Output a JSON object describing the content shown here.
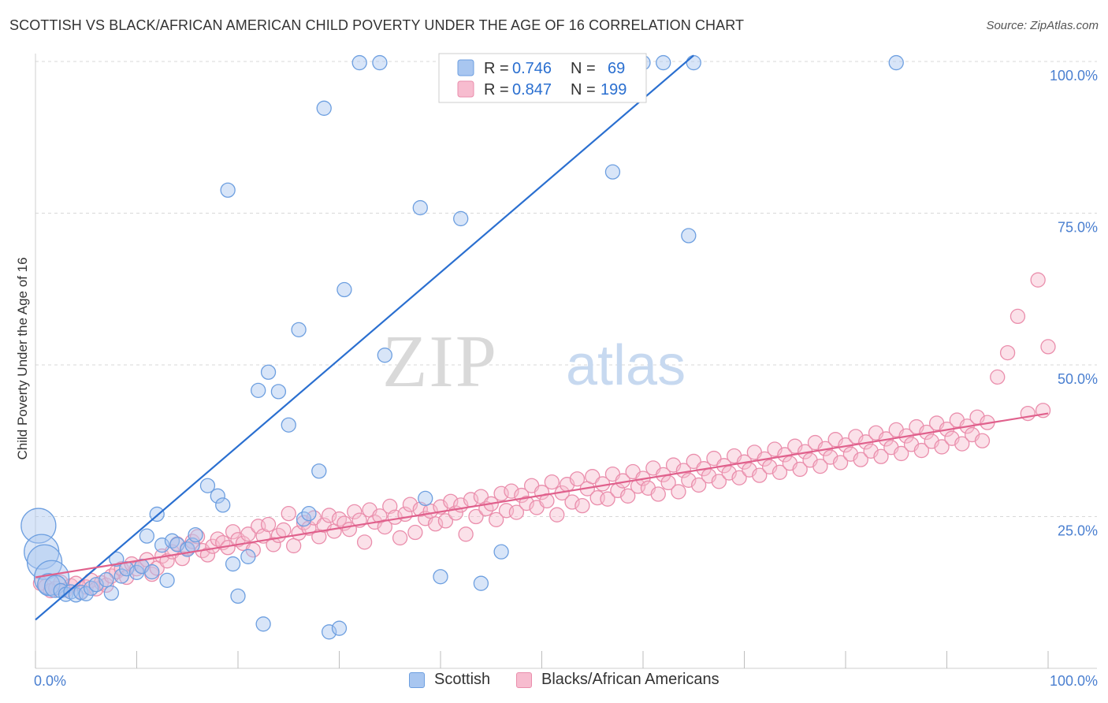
{
  "title": "SCOTTISH VS BLACK/AFRICAN AMERICAN CHILD POVERTY UNDER THE AGE OF 16 CORRELATION CHART",
  "source": "Source: ZipAtlas.com",
  "watermark": {
    "part1": "ZIP",
    "part2": "atlas"
  },
  "colors": {
    "scottish_fill": "#a8c6f0",
    "scottish_stroke": "#6d9fe0",
    "scottish_line": "#2a6fd0",
    "black_fill": "#f7bccf",
    "black_stroke": "#ea8eac",
    "black_line": "#e0608c",
    "tick_text": "#4a7fd0",
    "grid": "#d8d8d8"
  },
  "legend": {
    "rows": [
      {
        "r_label": "R =",
        "r_value": "0.746",
        "n_label": "N =",
        "n_value": "69"
      },
      {
        "r_label": "R =",
        "r_value": "0.847",
        "n_label": "N =",
        "n_value": "199"
      }
    ]
  },
  "bottom_legend": {
    "scottish": "Scottish",
    "black": "Blacks/African Americans"
  },
  "chart_data": {
    "type": "scatter",
    "title": "SCOTTISH VS BLACK/AFRICAN AMERICAN CHILD POVERTY UNDER THE AGE OF 16 CORRELATION CHART",
    "xlabel": "",
    "ylabel": "Child Poverty Under the Age of 16",
    "xlim": [
      0,
      100
    ],
    "ylim": [
      0,
      100
    ],
    "x_tick_labels": [
      "0.0%",
      "100.0%"
    ],
    "y_tick_labels": [
      "25.0%",
      "50.0%",
      "75.0%",
      "100.0%"
    ],
    "y_ticks": [
      25,
      50,
      75,
      100
    ],
    "grid": true,
    "legend_position": "top-center",
    "series": [
      {
        "name": "Scottish",
        "r": 0.746,
        "n": 69,
        "trend": {
          "x": [
            0,
            65
          ],
          "y": [
            8,
            101
          ]
        },
        "points": [
          [
            0.3,
            23.5,
            "L"
          ],
          [
            0.6,
            19.2,
            "L"
          ],
          [
            0.9,
            17.5,
            "L"
          ],
          [
            1.6,
            14.9,
            "L"
          ],
          [
            1.3,
            13.8,
            "M"
          ],
          [
            2.0,
            13.5,
            "M"
          ],
          [
            2.5,
            12.8
          ],
          [
            3.0,
            12.2
          ],
          [
            3.5,
            12.6
          ],
          [
            4.0,
            12.1
          ],
          [
            4.5,
            12.5
          ],
          [
            5.0,
            12.3
          ],
          [
            5.5,
            13.2
          ],
          [
            6.0,
            13.8
          ],
          [
            7.0,
            14.6
          ],
          [
            7.5,
            12.4
          ],
          [
            8.0,
            18.0
          ],
          [
            8.5,
            15.2
          ],
          [
            9.0,
            16.4
          ],
          [
            10.0,
            15.8
          ],
          [
            10.5,
            16.8
          ],
          [
            11.0,
            21.8
          ],
          [
            11.5,
            15.9
          ],
          [
            12.0,
            25.4
          ],
          [
            12.5,
            20.3
          ],
          [
            13.0,
            14.5
          ],
          [
            13.5,
            21.0
          ],
          [
            14.0,
            20.4
          ],
          [
            15.0,
            19.6
          ],
          [
            15.5,
            20.3
          ],
          [
            15.8,
            22.0
          ],
          [
            17.0,
            30.1
          ],
          [
            18.0,
            28.4
          ],
          [
            18.5,
            26.9
          ],
          [
            19.0,
            78.8
          ],
          [
            19.5,
            17.2
          ],
          [
            20.0,
            11.9
          ],
          [
            21.0,
            18.4
          ],
          [
            22.0,
            45.8
          ],
          [
            22.5,
            7.3
          ],
          [
            23.0,
            48.8
          ],
          [
            24.0,
            45.6
          ],
          [
            25.0,
            40.1
          ],
          [
            26.0,
            55.8
          ],
          [
            26.5,
            24.6
          ],
          [
            27.0,
            25.5
          ],
          [
            28.0,
            32.5
          ],
          [
            28.5,
            92.3
          ],
          [
            29.0,
            6.0
          ],
          [
            30.0,
            6.6
          ],
          [
            30.5,
            62.4
          ],
          [
            32.0,
            99.8
          ],
          [
            34.0,
            99.8
          ],
          [
            34.5,
            51.6
          ],
          [
            38.0,
            75.9
          ],
          [
            38.5,
            28.0
          ],
          [
            40.0,
            15.1
          ],
          [
            42.0,
            74.1
          ],
          [
            44.0,
            14.0
          ],
          [
            46.0,
            19.2
          ],
          [
            48.0,
            99.8
          ],
          [
            48.3,
            99.8
          ],
          [
            57.0,
            81.8
          ],
          [
            57.5,
            99.8
          ],
          [
            60.0,
            99.8
          ],
          [
            62.0,
            99.8
          ],
          [
            64.5,
            71.3
          ],
          [
            65.0,
            99.8
          ],
          [
            85.0,
            99.8
          ]
        ]
      },
      {
        "name": "Blacks/African Americans",
        "r": 0.847,
        "n": 199,
        "trend": {
          "x": [
            0,
            100
          ],
          "y": [
            15.0,
            42.0
          ]
        },
        "points": [
          [
            0.5,
            14.0
          ],
          [
            1.0,
            13.5
          ],
          [
            1.5,
            12.8
          ],
          [
            2.0,
            13.2
          ],
          [
            2.5,
            14.2
          ],
          [
            3.0,
            12.9
          ],
          [
            3.5,
            13.6
          ],
          [
            4.0,
            14.0
          ],
          [
            4.5,
            12.6
          ],
          [
            5.0,
            13.4
          ],
          [
            5.5,
            14.5
          ],
          [
            6.0,
            13.1
          ],
          [
            6.5,
            14.1
          ],
          [
            7.0,
            13.7
          ],
          [
            7.5,
            15.2
          ],
          [
            8.0,
            15.9
          ],
          [
            8.5,
            16.4
          ],
          [
            9.0,
            15.0
          ],
          [
            9.5,
            17.2
          ],
          [
            10.0,
            16.4
          ],
          [
            10.5,
            16.8
          ],
          [
            11.0,
            17.9
          ],
          [
            11.5,
            15.5
          ],
          [
            12.0,
            16.5
          ],
          [
            12.5,
            18.5
          ],
          [
            13.0,
            17.7
          ],
          [
            13.5,
            19.2
          ],
          [
            14.0,
            20.5
          ],
          [
            14.5,
            18.1
          ],
          [
            15.0,
            19.8
          ],
          [
            15.5,
            20.9
          ],
          [
            16.0,
            21.7
          ],
          [
            16.5,
            19.4
          ],
          [
            17.0,
            18.7
          ],
          [
            17.5,
            20.1
          ],
          [
            18.0,
            21.3
          ],
          [
            18.5,
            20.7
          ],
          [
            19.0,
            19.9
          ],
          [
            19.5,
            22.5
          ],
          [
            20.0,
            21.2
          ],
          [
            20.5,
            20.6
          ],
          [
            21.0,
            22.1
          ],
          [
            21.5,
            19.5
          ],
          [
            22.0,
            23.4
          ],
          [
            22.5,
            21.8
          ],
          [
            23.0,
            23.7
          ],
          [
            23.5,
            20.4
          ],
          [
            24.0,
            21.9
          ],
          [
            24.5,
            22.8
          ],
          [
            25.0,
            25.5
          ],
          [
            25.5,
            20.2
          ],
          [
            26.0,
            22.3
          ],
          [
            26.5,
            24.0
          ],
          [
            27.0,
            23.1
          ],
          [
            27.5,
            24.8
          ],
          [
            28.0,
            21.7
          ],
          [
            28.5,
            23.6
          ],
          [
            29.0,
            25.2
          ],
          [
            29.5,
            22.6
          ],
          [
            30.0,
            24.6
          ],
          [
            30.5,
            23.9
          ],
          [
            31.0,
            22.9
          ],
          [
            31.5,
            25.8
          ],
          [
            32.0,
            24.4
          ],
          [
            32.5,
            20.8
          ],
          [
            33.0,
            26.1
          ],
          [
            33.5,
            24.1
          ],
          [
            34.0,
            25.1
          ],
          [
            34.5,
            23.3
          ],
          [
            35.0,
            26.7
          ],
          [
            35.5,
            24.9
          ],
          [
            36.0,
            21.5
          ],
          [
            36.5,
            25.4
          ],
          [
            37.0,
            27.0
          ],
          [
            37.5,
            22.4
          ],
          [
            38.0,
            26.2
          ],
          [
            38.5,
            24.7
          ],
          [
            39.0,
            25.9
          ],
          [
            39.5,
            23.8
          ],
          [
            40.0,
            26.6
          ],
          [
            40.5,
            24.3
          ],
          [
            41.0,
            27.5
          ],
          [
            41.5,
            25.6
          ],
          [
            42.0,
            26.9
          ],
          [
            42.5,
            22.1
          ],
          [
            43.0,
            27.8
          ],
          [
            43.5,
            25.0
          ],
          [
            44.0,
            28.3
          ],
          [
            44.5,
            26.3
          ],
          [
            45.0,
            27.1
          ],
          [
            45.5,
            24.5
          ],
          [
            46.0,
            28.8
          ],
          [
            46.5,
            26.0
          ],
          [
            47.0,
            29.2
          ],
          [
            47.5,
            25.7
          ],
          [
            48.0,
            28.5
          ],
          [
            48.5,
            27.2
          ],
          [
            49.0,
            30.1
          ],
          [
            49.5,
            26.5
          ],
          [
            50.0,
            29.0
          ],
          [
            50.5,
            27.6
          ],
          [
            51.0,
            30.7
          ],
          [
            51.5,
            25.3
          ],
          [
            52.0,
            28.9
          ],
          [
            52.5,
            30.3
          ],
          [
            53.0,
            27.4
          ],
          [
            53.5,
            31.2
          ],
          [
            54.0,
            26.8
          ],
          [
            54.5,
            29.6
          ],
          [
            55.0,
            31.6
          ],
          [
            55.5,
            28.1
          ],
          [
            56.0,
            30.4
          ],
          [
            56.5,
            27.9
          ],
          [
            57.0,
            32.0
          ],
          [
            57.5,
            29.3
          ],
          [
            58.0,
            30.9
          ],
          [
            58.5,
            28.4
          ],
          [
            59.0,
            32.4
          ],
          [
            59.5,
            30.0
          ],
          [
            60.0,
            31.3
          ],
          [
            60.5,
            29.7
          ],
          [
            61.0,
            33.0
          ],
          [
            61.5,
            28.7
          ],
          [
            62.0,
            31.9
          ],
          [
            62.5,
            30.6
          ],
          [
            63.0,
            33.5
          ],
          [
            63.5,
            29.1
          ],
          [
            64.0,
            32.6
          ],
          [
            64.5,
            31.0
          ],
          [
            65.0,
            34.1
          ],
          [
            65.5,
            30.2
          ],
          [
            66.0,
            32.9
          ],
          [
            66.5,
            31.7
          ],
          [
            67.0,
            34.6
          ],
          [
            67.5,
            30.8
          ],
          [
            68.0,
            33.4
          ],
          [
            68.5,
            32.2
          ],
          [
            69.0,
            35.0
          ],
          [
            69.5,
            31.4
          ],
          [
            70.0,
            34.0
          ],
          [
            70.5,
            32.7
          ],
          [
            71.0,
            35.6
          ],
          [
            71.5,
            31.8
          ],
          [
            72.0,
            34.5
          ],
          [
            72.5,
            33.2
          ],
          [
            73.0,
            36.1
          ],
          [
            73.5,
            32.3
          ],
          [
            74.0,
            35.2
          ],
          [
            74.5,
            33.8
          ],
          [
            75.0,
            36.6
          ],
          [
            75.5,
            32.8
          ],
          [
            76.0,
            35.7
          ],
          [
            76.5,
            34.3
          ],
          [
            77.0,
            37.2
          ],
          [
            77.5,
            33.3
          ],
          [
            78.0,
            36.2
          ],
          [
            78.5,
            34.8
          ],
          [
            79.0,
            37.7
          ],
          [
            79.5,
            33.9
          ],
          [
            80.0,
            36.8
          ],
          [
            80.5,
            35.3
          ],
          [
            81.0,
            38.2
          ],
          [
            81.5,
            34.4
          ],
          [
            82.0,
            37.3
          ],
          [
            82.5,
            35.8
          ],
          [
            83.0,
            38.8
          ],
          [
            83.5,
            34.9
          ],
          [
            84.0,
            37.8
          ],
          [
            84.5,
            36.4
          ],
          [
            85.0,
            39.3
          ],
          [
            85.5,
            35.4
          ],
          [
            86.0,
            38.3
          ],
          [
            86.5,
            36.9
          ],
          [
            87.0,
            39.8
          ],
          [
            87.5,
            35.9
          ],
          [
            88.0,
            38.9
          ],
          [
            88.5,
            37.4
          ],
          [
            89.0,
            40.4
          ],
          [
            89.5,
            36.5
          ],
          [
            90.0,
            39.4
          ],
          [
            90.5,
            37.9
          ],
          [
            91.0,
            40.9
          ],
          [
            91.5,
            37.0
          ],
          [
            92.0,
            39.9
          ],
          [
            92.5,
            38.5
          ],
          [
            93.0,
            41.4
          ],
          [
            93.5,
            37.5
          ],
          [
            94.0,
            40.5
          ],
          [
            95.0,
            48.0
          ],
          [
            96.0,
            52.0
          ],
          [
            97.0,
            58.0
          ],
          [
            98.0,
            42.0
          ],
          [
            99.0,
            64.0
          ],
          [
            99.5,
            42.5
          ],
          [
            100.0,
            53.0
          ]
        ]
      }
    ]
  }
}
